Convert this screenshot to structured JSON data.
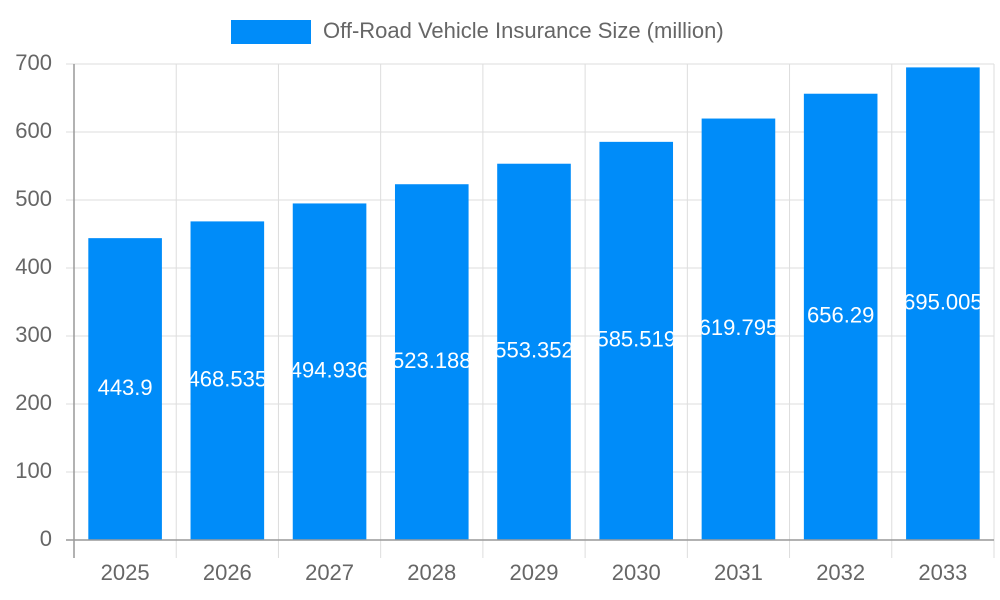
{
  "chart_data": {
    "type": "bar",
    "series_name": "Off-Road Vehicle Insurance Size (million)",
    "categories": [
      "2025",
      "2026",
      "2027",
      "2028",
      "2029",
      "2030",
      "2031",
      "2032",
      "2033"
    ],
    "values": [
      443.9,
      468.535,
      494.936,
      523.188,
      553.352,
      585.519,
      619.795,
      656.29,
      695.005
    ],
    "color": "#008cf9",
    "ylim": [
      0,
      700
    ],
    "yticks": [
      0,
      100,
      200,
      300,
      400,
      500,
      600,
      700
    ],
    "grid": true
  }
}
